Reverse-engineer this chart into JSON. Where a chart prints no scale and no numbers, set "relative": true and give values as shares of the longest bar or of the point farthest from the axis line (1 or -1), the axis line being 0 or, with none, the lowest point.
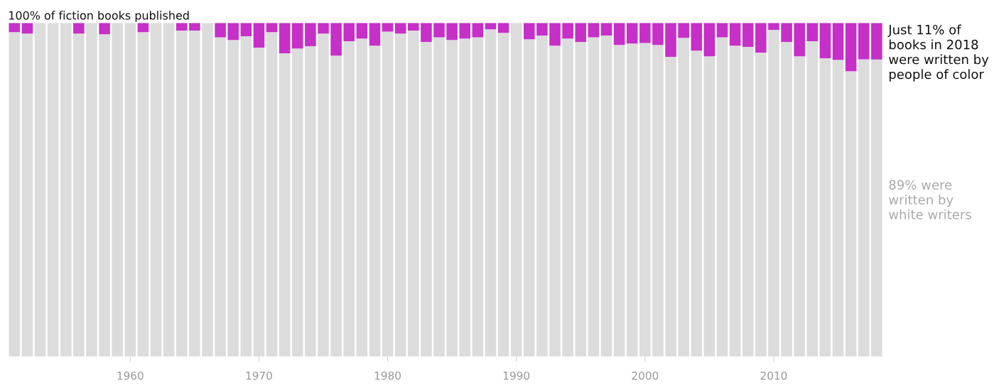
{
  "chart_data": {
    "type": "bar",
    "stacked": true,
    "relative": true,
    "x": [
      1951,
      1952,
      1953,
      1954,
      1955,
      1956,
      1957,
      1958,
      1959,
      1960,
      1961,
      1962,
      1963,
      1964,
      1965,
      1966,
      1967,
      1968,
      1969,
      1970,
      1971,
      1972,
      1973,
      1974,
      1975,
      1976,
      1977,
      1978,
      1979,
      1980,
      1981,
      1982,
      1983,
      1984,
      1985,
      1986,
      1987,
      1988,
      1989,
      1990,
      1991,
      1992,
      1993,
      1994,
      1995,
      1996,
      1997,
      1998,
      1999,
      2000,
      2001,
      2002,
      2003,
      2004,
      2005,
      2006,
      2007,
      2008,
      2009,
      2010,
      2011,
      2012,
      2013,
      2014,
      2015,
      2016,
      2017,
      2018
    ],
    "xlim": [
      1950.5,
      2018.5
    ],
    "xticks": [
      1960,
      1970,
      1980,
      1990,
      2000,
      2010
    ],
    "series": [
      {
        "color": "#dcdcdc",
        "values": [
          0.972,
          0.968,
          1,
          1,
          1,
          0.968,
          1,
          0.966,
          1,
          1,
          0.972,
          1,
          1,
          0.977,
          0.977,
          1,
          0.957,
          0.949,
          0.96,
          0.926,
          0.972,
          0.909,
          0.923,
          0.93,
          0.968,
          0.902,
          0.945,
          0.953,
          0.932,
          0.974,
          0.968,
          0.977,
          0.943,
          0.957,
          0.949,
          0.953,
          0.957,
          0.981,
          0.97,
          1,
          0.951,
          0.962,
          0.932,
          0.953,
          0.943,
          0.957,
          0.962,
          0.934,
          0.938,
          0.94,
          0.934,
          0.898,
          0.955,
          0.917,
          0.9,
          0.957,
          0.932,
          0.928,
          0.911,
          0.979,
          0.943,
          0.9,
          0.945,
          0.894,
          0.889,
          0.855,
          0.891,
          0.89
        ]
      },
      {
        "color": "#c72fc9",
        "values": [
          0.028,
          0.032,
          0,
          0,
          0,
          0.032,
          0,
          0.034,
          0,
          0,
          0.028,
          0,
          0,
          0.023,
          0.023,
          0,
          0.043,
          0.051,
          0.04,
          0.074,
          0.028,
          0.091,
          0.077,
          0.07,
          0.032,
          0.098,
          0.055,
          0.047,
          0.068,
          0.026,
          0.032,
          0.023,
          0.057,
          0.043,
          0.051,
          0.047,
          0.043,
          0.019,
          0.03,
          0,
          0.049,
          0.038,
          0.068,
          0.047,
          0.057,
          0.043,
          0.038,
          0.066,
          0.062,
          0.06,
          0.066,
          0.102,
          0.045,
          0.083,
          0.1,
          0.043,
          0.068,
          0.072,
          0.089,
          0.021,
          0.057,
          0.1,
          0.055,
          0.106,
          0.111,
          0.145,
          0.109,
          0.11
        ]
      }
    ],
    "annotations": [
      "100% of fiction books published",
      "Just 11% of books in 2018 were written by people of color",
      "89% were written by white writers"
    ]
  }
}
